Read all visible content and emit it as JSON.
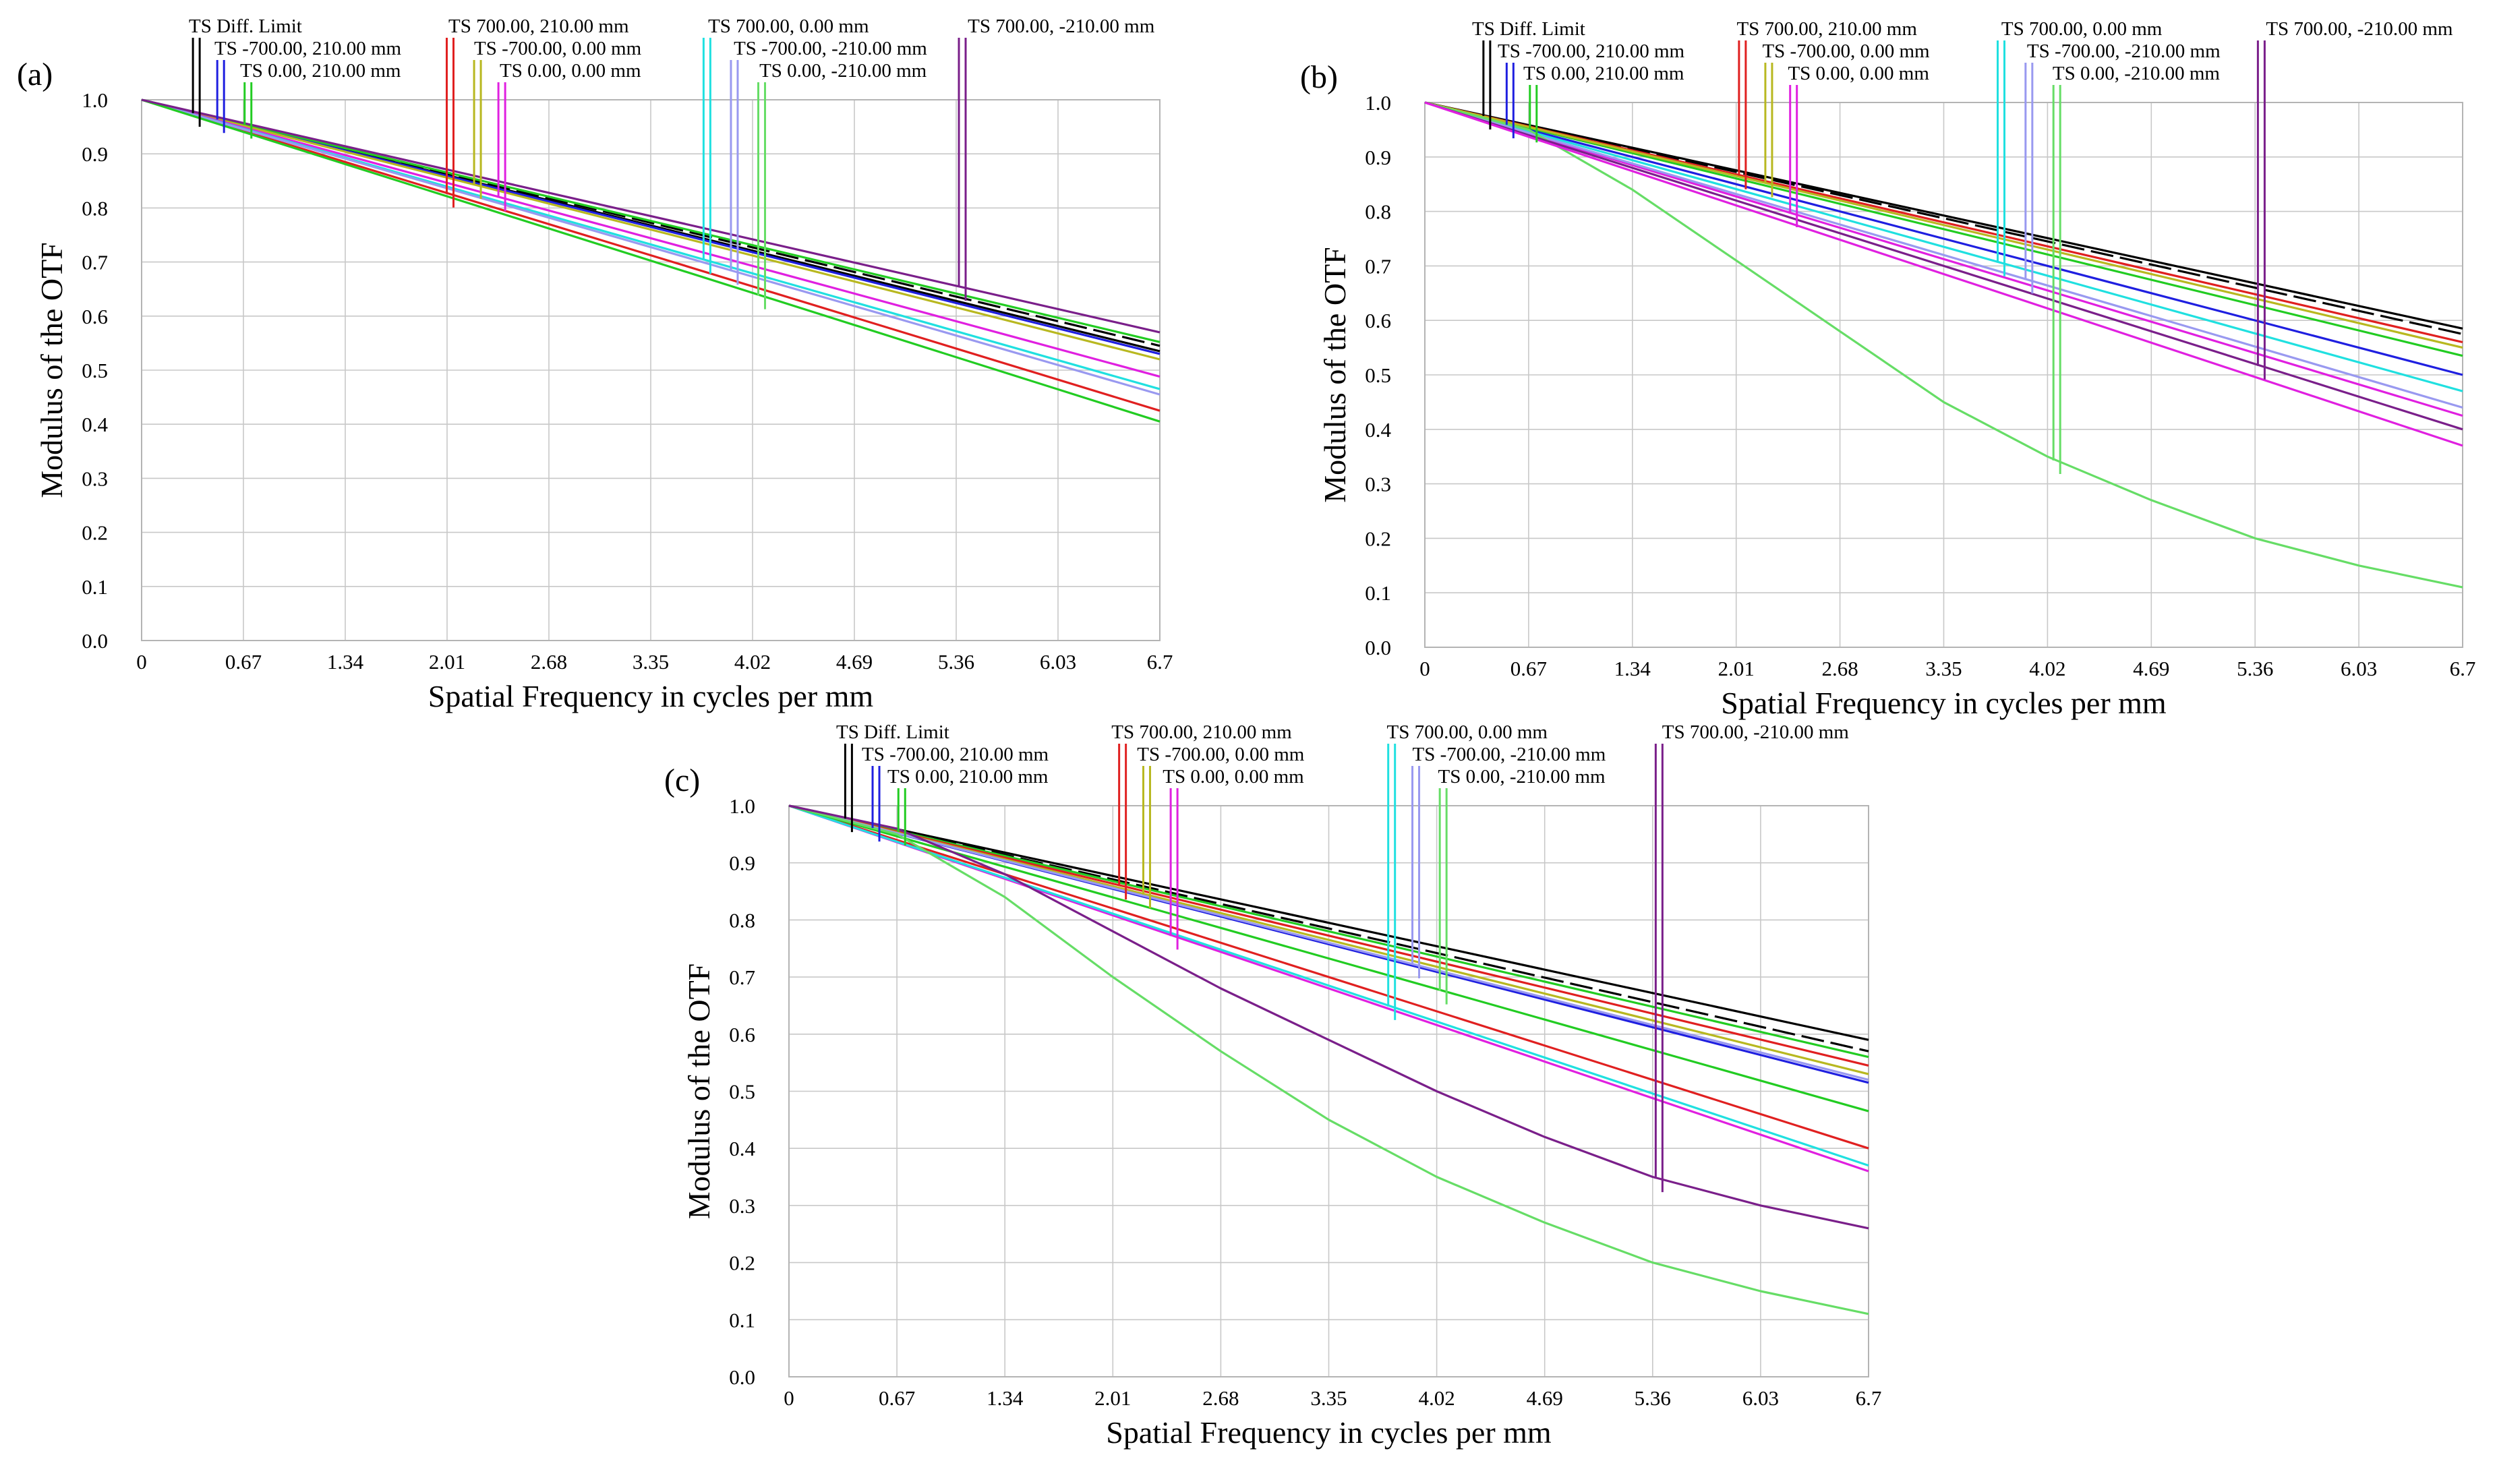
{
  "chart_data": [
    {
      "type": "line",
      "panel": "(a)",
      "xlabel": "Spatial Frequency in cycles per mm",
      "ylabel": "Modulus of the OTF",
      "xlim": [
        0,
        6.7
      ],
      "ylim": [
        0,
        1.0
      ],
      "x_ticks": [
        "0",
        "0.67",
        "1.34",
        "2.01",
        "2.68",
        "3.35",
        "4.02",
        "4.69",
        "5.36",
        "6.03",
        "6.7"
      ],
      "y_ticks": [
        "0.0",
        "0.1",
        "0.2",
        "0.3",
        "0.4",
        "0.5",
        "0.6",
        "0.7",
        "0.8",
        "0.9",
        "1.0"
      ],
      "legend": [
        {
          "label": "TS Diff. Limit",
          "color": "#000000",
          "marker_x": 0.36
        },
        {
          "label": "TS -700.00, 210.00 mm",
          "color": "#1f1fe0",
          "marker_x": 0.52
        },
        {
          "label": "TS 0.00, 210.00 mm",
          "color": "#22cc22",
          "marker_x": 0.7
        },
        {
          "label": "TS 700.00, 210.00 mm",
          "color": "#e02020",
          "marker_x": 2.03
        },
        {
          "label": "TS -700.00, 0.00 mm",
          "color": "#b8b820",
          "marker_x": 2.21
        },
        {
          "label": "TS 0.00, 0.00 mm",
          "color": "#e020e0",
          "marker_x": 2.37
        },
        {
          "label": "TS 700.00, 0.00 mm",
          "color": "#20e0e0",
          "marker_x": 3.72
        },
        {
          "label": "TS -700.00, -210.00 mm",
          "color": "#9999f0",
          "marker_x": 3.9
        },
        {
          "label": "TS 0.00, -210.00 mm",
          "color": "#66dd66",
          "marker_x": 4.08
        },
        {
          "label": "TS 700.00, -210.00 mm",
          "color": "#7a1f8a",
          "marker_x": 5.4
        }
      ],
      "series": [
        {
          "name": "TS Diff. Limit",
          "color": "#000000",
          "x": [
            0,
            6.7
          ],
          "y": [
            1.0,
            0.535
          ]
        },
        {
          "name": "TS Diff. Limit (S)",
          "color": "#000000",
          "dashed": true,
          "x": [
            0,
            6.7
          ],
          "y": [
            1.0,
            0.545
          ]
        },
        {
          "name": "TS -700.00, 210.00 mm",
          "color": "#1f1fe0",
          "x": [
            0,
            6.7
          ],
          "y": [
            1.0,
            0.53
          ]
        },
        {
          "name": "TS 0.00, 210.00 mm",
          "color": "#22cc22",
          "x": [
            0,
            6.7
          ],
          "y": [
            1.0,
            0.552
          ]
        },
        {
          "name": "TS 700.00, 210.00 mm",
          "color": "#e02020",
          "x": [
            0,
            6.7
          ],
          "y": [
            1.0,
            0.425
          ]
        },
        {
          "name": "TS -700.00, 0.00 mm",
          "color": "#b8b820",
          "x": [
            0,
            6.7
          ],
          "y": [
            1.0,
            0.52
          ]
        },
        {
          "name": "TS 0.00, 0.00 mm",
          "color": "#e020e0",
          "x": [
            0,
            6.7
          ],
          "y": [
            1.0,
            0.488
          ]
        },
        {
          "name": "TS 700.00, 0.00 mm",
          "color": "#20e0e0",
          "x": [
            0,
            6.7
          ],
          "y": [
            1.0,
            0.465
          ]
        },
        {
          "name": "TS -700.00, -210.00 mm",
          "color": "#9999f0",
          "x": [
            0,
            6.7
          ],
          "y": [
            1.0,
            0.455
          ]
        },
        {
          "name": "TS 0.00, -210.00 mm",
          "color": "#22cc22",
          "x": [
            0,
            6.7
          ],
          "y": [
            1.0,
            0.405
          ]
        },
        {
          "name": "TS 700.00, -210.00 mm",
          "color": "#7a1f8a",
          "x": [
            0,
            6.7
          ],
          "y": [
            1.0,
            0.57
          ]
        }
      ]
    },
    {
      "type": "line",
      "panel": "(b)",
      "xlabel": "Spatial Frequency in cycles per mm",
      "ylabel": "Modulus of the OTF",
      "xlim": [
        0,
        6.7
      ],
      "ylim": [
        0,
        1.0
      ],
      "x_ticks": [
        "0",
        "0.67",
        "1.34",
        "2.01",
        "2.68",
        "3.35",
        "4.02",
        "4.69",
        "5.36",
        "6.03",
        "6.7"
      ],
      "y_ticks": [
        "0.0",
        "0.1",
        "0.2",
        "0.3",
        "0.4",
        "0.5",
        "0.6",
        "0.7",
        "0.8",
        "0.9",
        "1.0"
      ],
      "legend": [
        {
          "label": "TS Diff. Limit",
          "color": "#000000",
          "marker_x": 0.4
        },
        {
          "label": "TS -700.00, 210.00 mm",
          "color": "#1f1fe0",
          "marker_x": 0.55
        },
        {
          "label": "TS 0.00, 210.00 mm",
          "color": "#22cc22",
          "marker_x": 0.7
        },
        {
          "label": "TS 700.00, 210.00 mm",
          "color": "#e02020",
          "marker_x": 2.05
        },
        {
          "label": "TS -700.00, 0.00 mm",
          "color": "#b8b820",
          "marker_x": 2.22
        },
        {
          "label": "TS 0.00, 0.00 mm",
          "color": "#e020e0",
          "marker_x": 2.38
        },
        {
          "label": "TS 700.00, 0.00 mm",
          "color": "#20e0e0",
          "marker_x": 3.72
        },
        {
          "label": "TS -700.00, -210.00 mm",
          "color": "#9999f0",
          "marker_x": 3.9
        },
        {
          "label": "TS 0.00, -210.00 mm",
          "color": "#66dd66",
          "marker_x": 4.08
        },
        {
          "label": "TS 700.00, -210.00 mm",
          "color": "#7a1f8a",
          "marker_x": 5.4
        }
      ],
      "series": [
        {
          "name": "TS Diff. Limit",
          "color": "#000000",
          "x": [
            0,
            6.7
          ],
          "y": [
            1.0,
            0.585
          ]
        },
        {
          "name": "TS Diff. Limit (S)",
          "color": "#000000",
          "dashed": true,
          "x": [
            0,
            6.7
          ],
          "y": [
            1.0,
            0.575
          ]
        },
        {
          "name": "TS -700.00, 210.00 mm",
          "color": "#1f1fe0",
          "x": [
            0,
            6.7
          ],
          "y": [
            1.0,
            0.5
          ]
        },
        {
          "name": "TS 0.00, 210.00 mm",
          "color": "#22cc22",
          "x": [
            0,
            6.7
          ],
          "y": [
            1.0,
            0.535
          ]
        },
        {
          "name": "TS 700.00, 210.00 mm",
          "color": "#e02020",
          "x": [
            0,
            6.7
          ],
          "y": [
            1.0,
            0.56
          ]
        },
        {
          "name": "TS -700.00, 0.00 mm",
          "color": "#b8b820",
          "x": [
            0,
            6.7
          ],
          "y": [
            1.0,
            0.55
          ]
        },
        {
          "name": "TS 0.00, 0.00 mm",
          "color": "#e020e0",
          "x": [
            0,
            6.7
          ],
          "y": [
            1.0,
            0.425
          ]
        },
        {
          "name": "TS 700.00, 0.00 mm",
          "color": "#20e0e0",
          "x": [
            0,
            6.7
          ],
          "y": [
            1.0,
            0.47
          ]
        },
        {
          "name": "TS -700.00, -210.00 mm",
          "color": "#9999f0",
          "x": [
            0,
            6.7
          ],
          "y": [
            1.0,
            0.44
          ]
        },
        {
          "name": "TS 0.00, -210.00 mm",
          "color": "#66dd66",
          "x": [
            0,
            0.67,
            1.34,
            2.01,
            2.68,
            3.35,
            4.02,
            4.69,
            5.36,
            6.03,
            6.7
          ],
          "y": [
            1.0,
            0.95,
            0.84,
            0.71,
            0.58,
            0.45,
            0.35,
            0.27,
            0.2,
            0.15,
            0.11
          ]
        },
        {
          "name": "TS 700.00, -210.00 mm",
          "color": "#7a1f8a",
          "x": [
            0,
            6.7
          ],
          "y": [
            1.0,
            0.4
          ]
        },
        {
          "name": "TS 700.00, -210.00 mm (S)",
          "color": "#e020e0",
          "x": [
            0,
            6.7
          ],
          "y": [
            1.0,
            0.37
          ]
        }
      ]
    },
    {
      "type": "line",
      "panel": "(c)",
      "xlabel": "Spatial Frequency in cycles per mm",
      "ylabel": "Modulus of the OTF",
      "xlim": [
        0,
        6.7
      ],
      "ylim": [
        0,
        1.0
      ],
      "x_ticks": [
        "0",
        "0.67",
        "1.34",
        "2.01",
        "2.68",
        "3.35",
        "4.02",
        "4.69",
        "5.36",
        "6.03",
        "6.7"
      ],
      "y_ticks": [
        "0.0",
        "0.1",
        "0.2",
        "0.3",
        "0.4",
        "0.5",
        "0.6",
        "0.7",
        "0.8",
        "0.9",
        "1.0"
      ],
      "legend": [
        {
          "label": "TS Diff. Limit",
          "color": "#000000",
          "marker_x": 0.37
        },
        {
          "label": "TS -700.00, 210.00 mm",
          "color": "#1f1fe0",
          "marker_x": 0.54
        },
        {
          "label": "TS 0.00, 210.00 mm",
          "color": "#22cc22",
          "marker_x": 0.7
        },
        {
          "label": "TS 700.00, 210.00 mm",
          "color": "#e02020",
          "marker_x": 2.07
        },
        {
          "label": "TS -700.00, 0.00 mm",
          "color": "#b8b820",
          "marker_x": 2.22
        },
        {
          "label": "TS 0.00, 0.00 mm",
          "color": "#e020e0",
          "marker_x": 2.39
        },
        {
          "label": "TS 700.00, 0.00 mm",
          "color": "#20e0e0",
          "marker_x": 3.74
        },
        {
          "label": "TS -700.00, -210.00 mm",
          "color": "#9999f0",
          "marker_x": 3.89
        },
        {
          "label": "TS 0.00, -210.00 mm",
          "color": "#66dd66",
          "marker_x": 4.06
        },
        {
          "label": "TS 700.00, -210.00 mm",
          "color": "#7a1f8a",
          "marker_x": 5.4
        }
      ],
      "series": [
        {
          "name": "TS Diff. Limit",
          "color": "#000000",
          "x": [
            0,
            6.7
          ],
          "y": [
            1.0,
            0.59
          ]
        },
        {
          "name": "TS Diff. Limit (S)",
          "color": "#000000",
          "dashed": true,
          "x": [
            0,
            6.7
          ],
          "y": [
            1.0,
            0.57
          ]
        },
        {
          "name": "TS -700.00, 210.00 mm",
          "color": "#1f1fe0",
          "x": [
            0,
            6.7
          ],
          "y": [
            1.0,
            0.515
          ]
        },
        {
          "name": "TS 0.00, 210.00 mm",
          "color": "#22cc22",
          "x": [
            0,
            6.7
          ],
          "y": [
            1.0,
            0.56
          ]
        },
        {
          "name": "TS 700.00, 210.00 mm",
          "color": "#e02020",
          "x": [
            0,
            6.7
          ],
          "y": [
            1.0,
            0.545
          ]
        },
        {
          "name": "TS 700.00, 210.00 mm (S)",
          "color": "#e02020",
          "x": [
            0,
            6.7
          ],
          "y": [
            1.0,
            0.4
          ]
        },
        {
          "name": "TS -700.00, 0.00 mm",
          "color": "#b8b820",
          "x": [
            0,
            6.7
          ],
          "y": [
            1.0,
            0.53
          ]
        },
        {
          "name": "TS 0.00, 0.00 mm",
          "color": "#e020e0",
          "x": [
            0,
            6.7
          ],
          "y": [
            1.0,
            0.36
          ]
        },
        {
          "name": "TS 700.00, 0.00 mm",
          "color": "#20e0e0",
          "x": [
            0,
            6.7
          ],
          "y": [
            1.0,
            0.37
          ]
        },
        {
          "name": "TS -700.00, -210.00 mm",
          "color": "#9999f0",
          "x": [
            0,
            6.7
          ],
          "y": [
            1.0,
            0.52
          ]
        },
        {
          "name": "TS 0.00, -210.00 mm",
          "color": "#22cc22",
          "x": [
            0,
            6.7
          ],
          "y": [
            1.0,
            0.465
          ]
        },
        {
          "name": "TS 0.00, -210.00 mm (S)",
          "color": "#66dd66",
          "x": [
            0,
            0.67,
            1.34,
            2.01,
            2.68,
            3.35,
            4.02,
            4.69,
            5.36,
            6.03,
            6.7
          ],
          "y": [
            1.0,
            0.95,
            0.84,
            0.7,
            0.57,
            0.45,
            0.35,
            0.27,
            0.2,
            0.15,
            0.11
          ]
        },
        {
          "name": "TS 700.00, -210.00 mm",
          "color": "#7a1f8a",
          "x": [
            0,
            0.67,
            1.34,
            2.01,
            2.68,
            3.35,
            4.02,
            4.69,
            5.36,
            6.03,
            6.7
          ],
          "y": [
            1.0,
            0.96,
            0.88,
            0.78,
            0.68,
            0.59,
            0.5,
            0.42,
            0.35,
            0.3,
            0.26
          ]
        }
      ]
    }
  ]
}
